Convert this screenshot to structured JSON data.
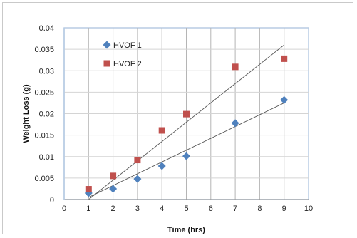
{
  "chart_data": {
    "type": "scatter",
    "xlabel": "Time (hrs)",
    "ylabel": "Weight  Loss (g)",
    "xlim": [
      0,
      10
    ],
    "ylim": [
      0,
      0.04
    ],
    "x_ticks": [
      "0",
      "1",
      "2",
      "3",
      "4",
      "5",
      "6",
      "7",
      "8",
      "9",
      "10"
    ],
    "y_ticks": [
      "0",
      "0.005",
      "0.01",
      "0.015",
      "0.02",
      "0.025",
      "0.03",
      "0.035",
      "0.04"
    ],
    "grid": true,
    "legend_position": "top-left",
    "series": [
      {
        "name": "HVOF 1",
        "marker": "diamond",
        "color": "#4f81bd",
        "x": [
          1,
          2,
          3,
          4,
          5,
          7,
          9
        ],
        "y": [
          0.0015,
          0.0025,
          0.0048,
          0.0078,
          0.0101,
          0.0178,
          0.0232
        ],
        "trendline": {
          "x": [
            1,
            9
          ],
          "y": [
            0.0005,
            0.0225
          ]
        }
      },
      {
        "name": "HVOF 2",
        "marker": "square",
        "color": "#c0504d",
        "x": [
          1,
          2,
          3,
          4,
          5,
          7,
          9
        ],
        "y": [
          0.0024,
          0.0055,
          0.0092,
          0.0161,
          0.0199,
          0.0309,
          0.0328
        ],
        "trendline": {
          "x": [
            1,
            9
          ],
          "y": [
            0.0,
            0.036
          ]
        }
      }
    ]
  }
}
